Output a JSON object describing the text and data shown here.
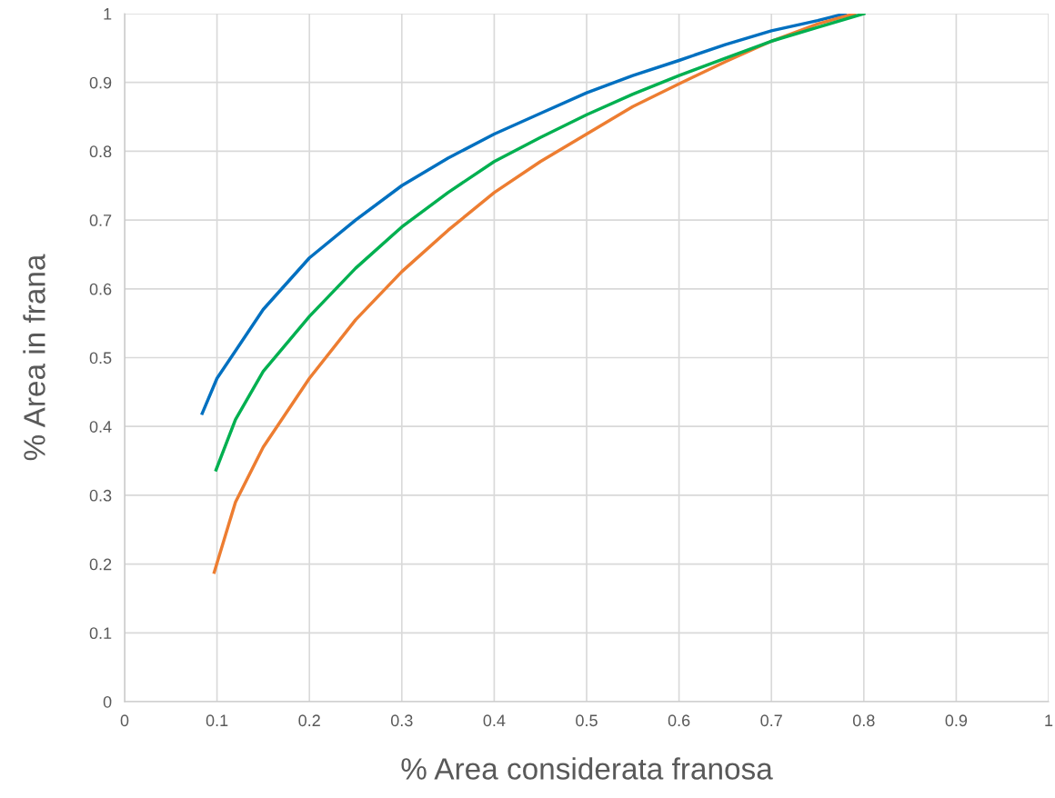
{
  "chart_data": {
    "type": "line",
    "xlabel": "% Area considerata franosa",
    "ylabel": "% Area in frana",
    "xlim": [
      0,
      1
    ],
    "ylim": [
      0,
      1
    ],
    "xticks": [
      0,
      0.1,
      0.2,
      0.3,
      0.4,
      0.5,
      0.6,
      0.7,
      0.8,
      0.9,
      1
    ],
    "yticks": [
      0,
      0.1,
      0.2,
      0.3,
      0.4,
      0.5,
      0.6,
      0.7,
      0.8,
      0.9,
      1
    ],
    "grid": true,
    "marker": "none",
    "line_style": "solid",
    "series": [
      {
        "color": "#0070c0",
        "x": [
          0.084,
          0.1,
          0.15,
          0.2,
          0.25,
          0.3,
          0.35,
          0.4,
          0.45,
          0.5,
          0.55,
          0.6,
          0.65,
          0.7,
          0.75,
          0.78
        ],
        "values": [
          0.419,
          0.47,
          0.57,
          0.645,
          0.7,
          0.75,
          0.79,
          0.825,
          0.855,
          0.885,
          0.91,
          0.932,
          0.955,
          0.975,
          0.99,
          1.0
        ]
      },
      {
        "color": "#ed7d31",
        "x": [
          0.097,
          0.12,
          0.15,
          0.2,
          0.25,
          0.3,
          0.35,
          0.4,
          0.45,
          0.5,
          0.55,
          0.6,
          0.65,
          0.7,
          0.75,
          0.79
        ],
        "values": [
          0.188,
          0.29,
          0.37,
          0.47,
          0.555,
          0.625,
          0.685,
          0.74,
          0.785,
          0.825,
          0.865,
          0.898,
          0.93,
          0.96,
          0.985,
          1.0
        ]
      },
      {
        "color": "#00b050",
        "x": [
          0.099,
          0.12,
          0.15,
          0.2,
          0.25,
          0.3,
          0.35,
          0.4,
          0.45,
          0.5,
          0.55,
          0.6,
          0.65,
          0.7,
          0.75,
          0.8
        ],
        "values": [
          0.337,
          0.41,
          0.48,
          0.56,
          0.63,
          0.69,
          0.74,
          0.785,
          0.82,
          0.853,
          0.883,
          0.91,
          0.935,
          0.96,
          0.98,
          1.0
        ]
      }
    ]
  }
}
